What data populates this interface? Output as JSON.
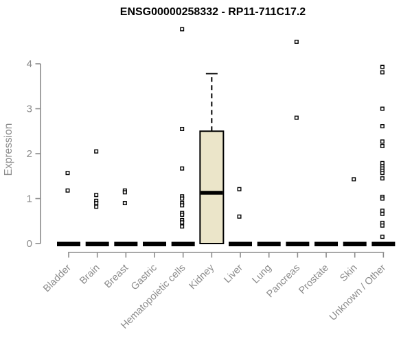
{
  "colors": {
    "axis": "#8b8b8b",
    "title_text": "#000000",
    "box_fill": "#ebe5c9",
    "box_border": "#000000",
    "point_stroke": "#000000",
    "point_fill": "#ffffff",
    "zero_bar": "#000000",
    "background": "#ffffff"
  },
  "chart_data": {
    "type": "boxplot",
    "title": "ENSG00000258332 - RP11-711C17.2",
    "xlabel": "",
    "ylabel": "Expression",
    "ylim": [
      0,
      4
    ],
    "yticks": [
      "0",
      "1",
      "2",
      "3",
      "4"
    ],
    "grid": false,
    "legend": false,
    "categories": [
      "Bladder",
      "Brain",
      "Breast",
      "Gastric",
      "Hematopoietic cells",
      "Kidney",
      "Liver",
      "Lung",
      "Pancreas",
      "Prostate",
      "Skin",
      "Unknown / Other"
    ],
    "series": [
      {
        "category": "Bladder",
        "zero_bar": true,
        "median": 0,
        "box": null,
        "points": [
          1.57,
          1.18
        ]
      },
      {
        "category": "Brain",
        "zero_bar": true,
        "median": 0,
        "box": null,
        "points": [
          2.05,
          1.08,
          0.95,
          0.9,
          0.82
        ]
      },
      {
        "category": "Breast",
        "zero_bar": true,
        "median": 0,
        "box": null,
        "points": [
          1.18,
          1.14,
          0.9
        ]
      },
      {
        "category": "Gastric",
        "zero_bar": true,
        "median": 0,
        "box": null,
        "points": []
      },
      {
        "category": "Hematopoietic cells",
        "zero_bar": true,
        "median": 0,
        "box": null,
        "points": [
          4.77,
          2.55,
          1.67,
          1.05,
          1.0,
          0.9,
          0.85,
          0.68,
          0.64,
          0.52,
          0.47,
          0.38
        ]
      },
      {
        "category": "Kidney",
        "zero_bar": false,
        "median": 1.13,
        "box": {
          "q1": 0,
          "median": 1.13,
          "q3": 2.5,
          "whisker_low": 0,
          "whisker_high": 3.78
        },
        "points": []
      },
      {
        "category": "Liver",
        "zero_bar": true,
        "median": 0,
        "box": null,
        "points": [
          1.21,
          0.6
        ]
      },
      {
        "category": "Lung",
        "zero_bar": true,
        "median": 0,
        "box": null,
        "points": []
      },
      {
        "category": "Pancreas",
        "zero_bar": true,
        "median": 0,
        "box": null,
        "points": [
          4.49,
          2.8
        ]
      },
      {
        "category": "Prostate",
        "zero_bar": true,
        "median": 0,
        "box": null,
        "points": []
      },
      {
        "category": "Skin",
        "zero_bar": true,
        "median": 0,
        "box": null,
        "points": [
          1.43
        ]
      },
      {
        "category": "Unknown / Other",
        "zero_bar": true,
        "median": 0,
        "box": null,
        "points": [
          3.93,
          3.81,
          3.0,
          2.61,
          2.27,
          2.17,
          1.79,
          1.72,
          1.67,
          1.62,
          1.57,
          1.45,
          1.04,
          1.0,
          0.73,
          0.66,
          0.46,
          0.4,
          0.15
        ]
      }
    ]
  }
}
